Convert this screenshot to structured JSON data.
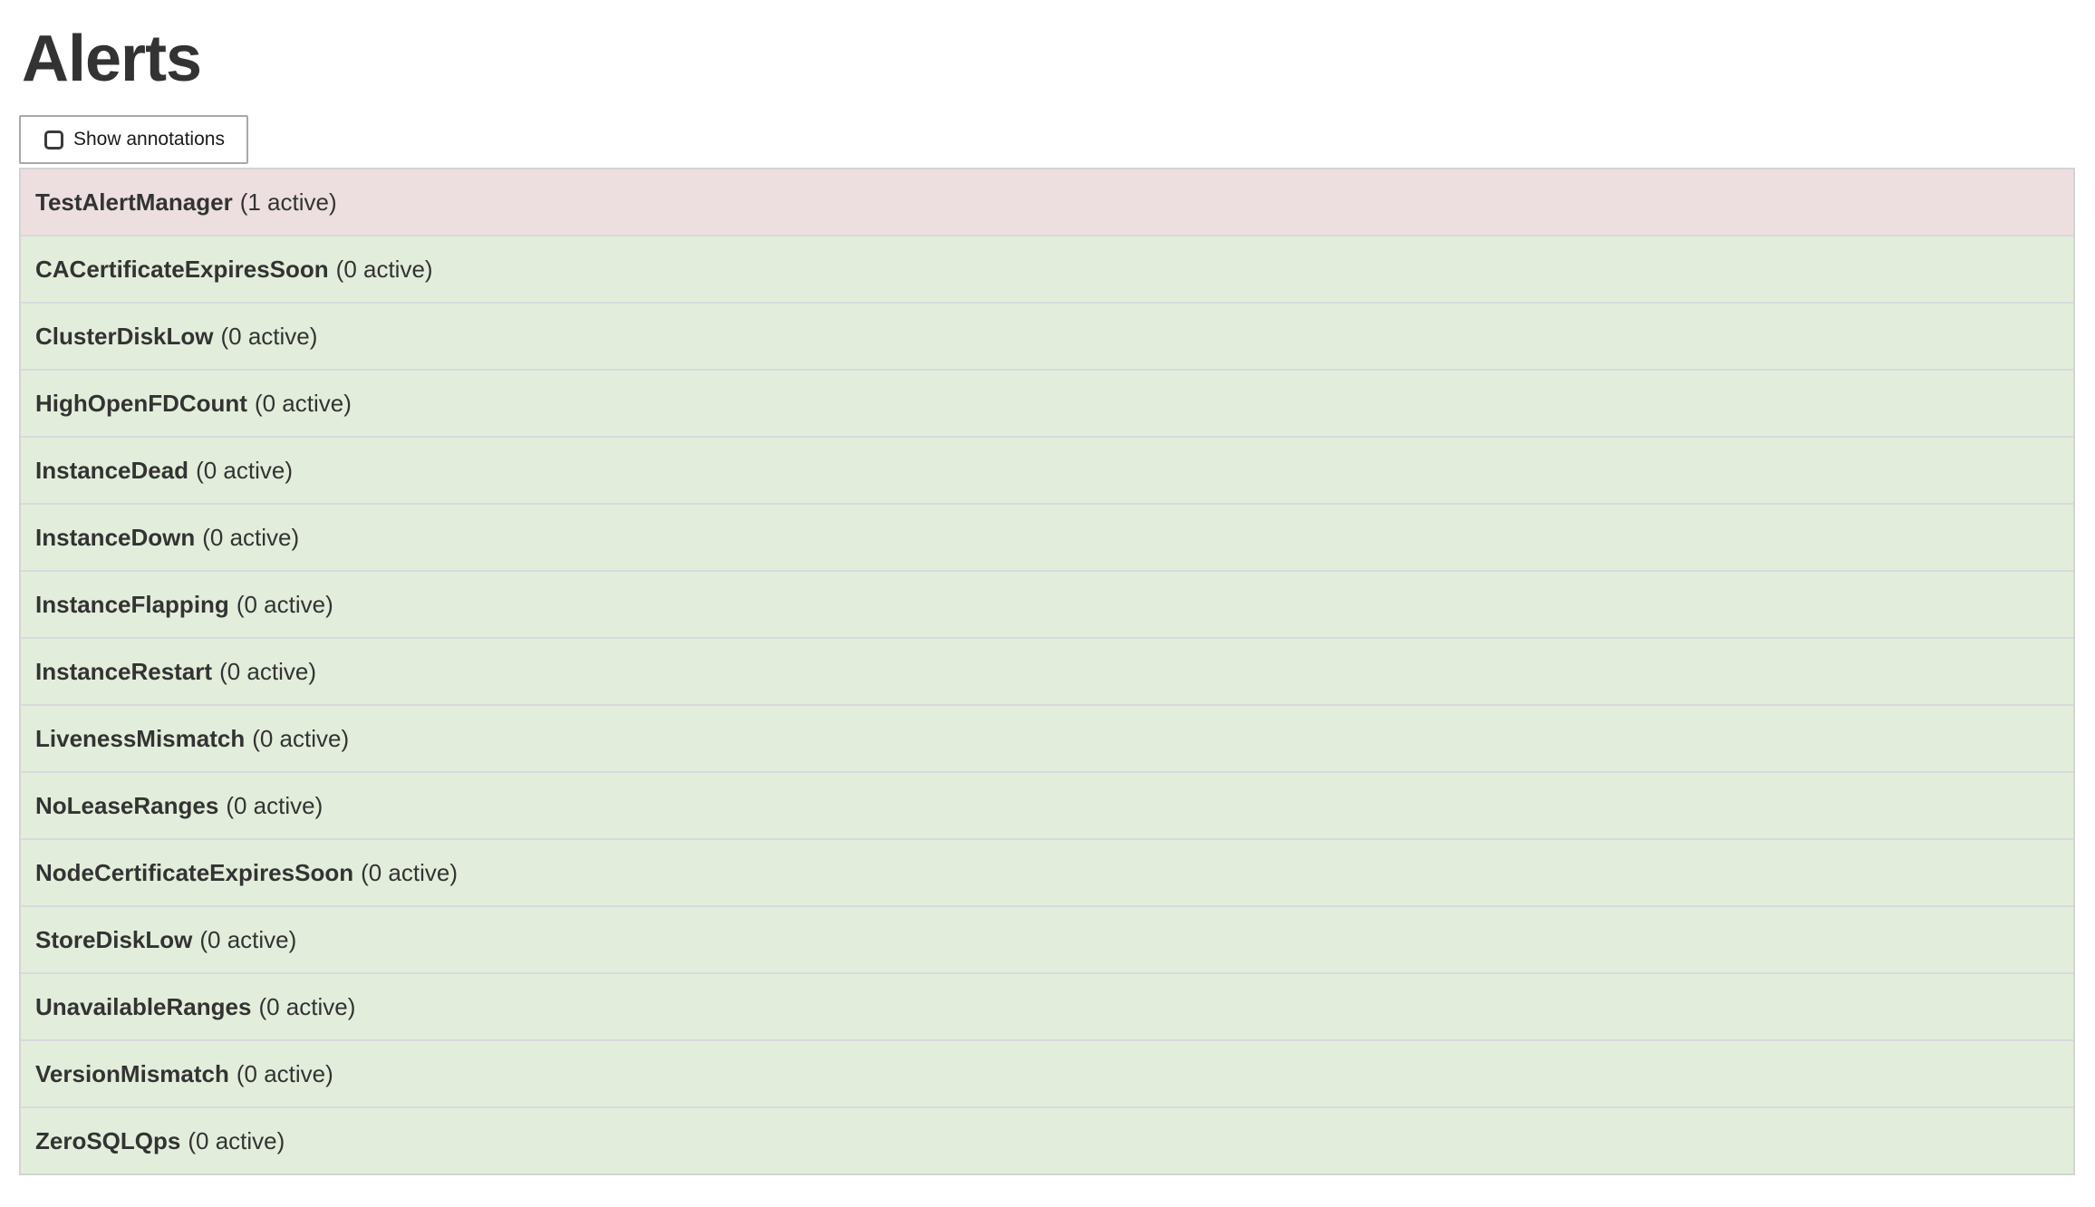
{
  "page": {
    "title": "Alerts"
  },
  "toolbar": {
    "show_annotations_label": "Show annotations",
    "show_annotations_checked": false
  },
  "alerts": {
    "rows": [
      {
        "name": "TestAlertManager",
        "active_count": 1,
        "status_label": "(1 active)",
        "state": "active"
      },
      {
        "name": "CACertificateExpiresSoon",
        "active_count": 0,
        "status_label": "(0 active)",
        "state": "inactive"
      },
      {
        "name": "ClusterDiskLow",
        "active_count": 0,
        "status_label": "(0 active)",
        "state": "inactive"
      },
      {
        "name": "HighOpenFDCount",
        "active_count": 0,
        "status_label": "(0 active)",
        "state": "inactive"
      },
      {
        "name": "InstanceDead",
        "active_count": 0,
        "status_label": "(0 active)",
        "state": "inactive"
      },
      {
        "name": "InstanceDown",
        "active_count": 0,
        "status_label": "(0 active)",
        "state": "inactive"
      },
      {
        "name": "InstanceFlapping",
        "active_count": 0,
        "status_label": "(0 active)",
        "state": "inactive"
      },
      {
        "name": "InstanceRestart",
        "active_count": 0,
        "status_label": "(0 active)",
        "state": "inactive"
      },
      {
        "name": "LivenessMismatch",
        "active_count": 0,
        "status_label": "(0 active)",
        "state": "inactive"
      },
      {
        "name": "NoLeaseRanges",
        "active_count": 0,
        "status_label": "(0 active)",
        "state": "inactive"
      },
      {
        "name": "NodeCertificateExpiresSoon",
        "active_count": 0,
        "status_label": "(0 active)",
        "state": "inactive"
      },
      {
        "name": "StoreDiskLow",
        "active_count": 0,
        "status_label": "(0 active)",
        "state": "inactive"
      },
      {
        "name": "UnavailableRanges",
        "active_count": 0,
        "status_label": "(0 active)",
        "state": "inactive"
      },
      {
        "name": "VersionMismatch",
        "active_count": 0,
        "status_label": "(0 active)",
        "state": "inactive"
      },
      {
        "name": "ZeroSQLQps",
        "active_count": 0,
        "status_label": "(0 active)",
        "state": "inactive"
      }
    ]
  },
  "colors": {
    "active_row_bg": "#eddfe0",
    "inactive_row_bg": "#e2eedb",
    "row_separator": "#d9d9dd",
    "table_border": "#d3d3d3",
    "button_border": "#a8a8a8",
    "text": "#333333"
  }
}
